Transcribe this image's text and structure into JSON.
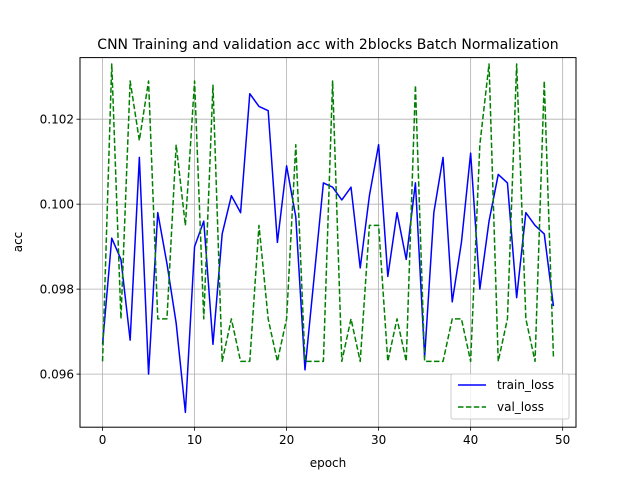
{
  "chart_data": {
    "type": "line",
    "title": "CNN Training and validation acc with 2blocks Batch Normalization",
    "xlabel": "epoch",
    "ylabel": "acc",
    "xlim": [
      -2.45,
      51.45
    ],
    "ylim": [
      0.09475,
      0.10345
    ],
    "xticks": [
      0,
      10,
      20,
      30,
      40,
      50
    ],
    "xtick_labels": [
      "0",
      "10",
      "20",
      "30",
      "40",
      "50"
    ],
    "yticks": [
      0.096,
      0.098,
      0.1,
      0.102
    ],
    "ytick_labels": [
      "0.096",
      "0.098",
      "0.100",
      "0.102"
    ],
    "grid": true,
    "legend_position": "lower right",
    "x": [
      0,
      1,
      2,
      3,
      4,
      5,
      6,
      7,
      8,
      9,
      10,
      11,
      12,
      13,
      14,
      15,
      16,
      17,
      18,
      19,
      20,
      21,
      22,
      23,
      24,
      25,
      26,
      27,
      28,
      29,
      30,
      31,
      32,
      33,
      34,
      35,
      36,
      37,
      38,
      39,
      40,
      41,
      42,
      43,
      44,
      45,
      46,
      47,
      48,
      49
    ],
    "series": [
      {
        "name": "train_loss",
        "color": "#0000ff",
        "dash": "solid",
        "values": [
          0.0967,
          0.0992,
          0.0987,
          0.0968,
          0.1011,
          0.096,
          0.0998,
          0.0986,
          0.0972,
          0.0951,
          0.099,
          0.0996,
          0.0967,
          0.0993,
          0.1002,
          0.0998,
          0.1026,
          0.1023,
          0.1022,
          0.0991,
          0.1009,
          0.0997,
          0.0961,
          0.0983,
          0.1005,
          0.1004,
          0.1001,
          0.1004,
          0.0985,
          0.1002,
          0.1014,
          0.0983,
          0.0998,
          0.0987,
          0.1005,
          0.0964,
          0.0998,
          0.1011,
          0.0977,
          0.0991,
          0.1012,
          0.098,
          0.0996,
          0.1007,
          0.1005,
          0.0978,
          0.0998,
          0.0995,
          0.0993,
          0.0976
        ]
      },
      {
        "name": "val_loss",
        "color": "#008000",
        "dash": "dashed",
        "values": [
          0.0963,
          0.1033,
          0.0973,
          0.1029,
          0.1015,
          0.1029,
          0.0973,
          0.0973,
          0.1014,
          0.0995,
          0.1029,
          0.0973,
          0.1028,
          0.0963,
          0.0973,
          0.0963,
          0.0963,
          0.0995,
          0.0973,
          0.0963,
          0.0973,
          0.1014,
          0.0963,
          0.0963,
          0.0963,
          0.1029,
          0.0963,
          0.0973,
          0.0963,
          0.0995,
          0.0995,
          0.0963,
          0.0973,
          0.0963,
          0.1028,
          0.0963,
          0.0963,
          0.0963,
          0.0973,
          0.0973,
          0.0963,
          0.1014,
          0.1033,
          0.0963,
          0.0973,
          0.1033,
          0.0973,
          0.0963,
          0.1029,
          0.0964
        ]
      }
    ]
  }
}
